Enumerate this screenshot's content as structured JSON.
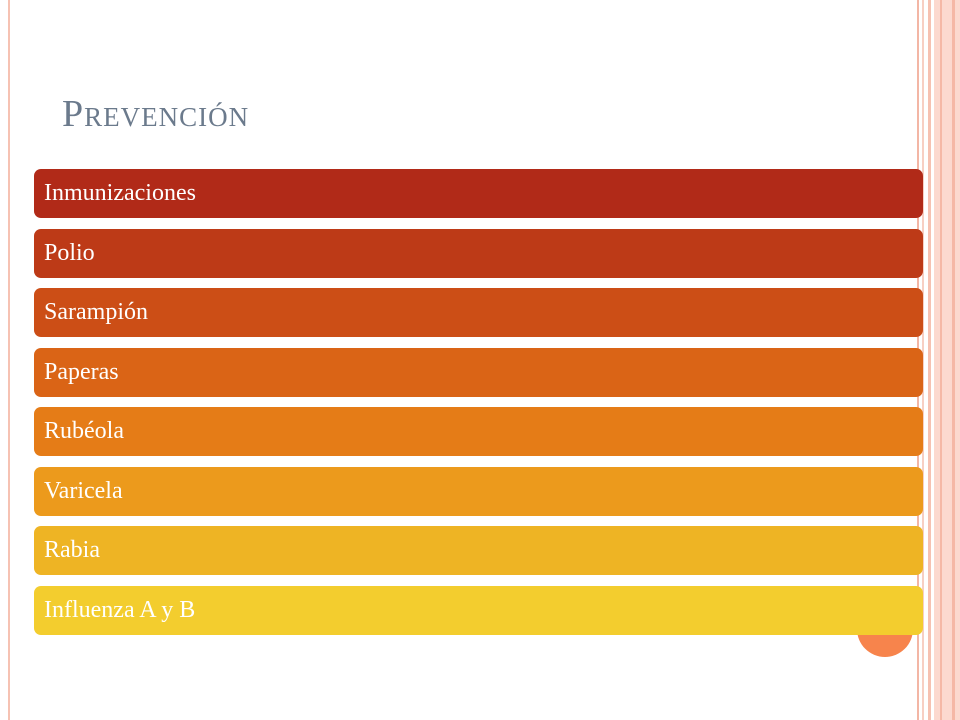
{
  "slide": {
    "title": "Prevención",
    "items": [
      {
        "label": "Inmunizaciones",
        "color": "#b12a18"
      },
      {
        "label": "Polio",
        "color": "#bd3a17"
      },
      {
        "label": "Sarampión",
        "color": "#cc4e16"
      },
      {
        "label": "Paperas",
        "color": "#da6416"
      },
      {
        "label": "Rubéola",
        "color": "#e57c17"
      },
      {
        "label": "Varicela",
        "color": "#ec9a1c"
      },
      {
        "label": "Rabia",
        "color": "#eeb424"
      },
      {
        "label": "Influenza A y B",
        "color": "#f3cd2e"
      }
    ]
  },
  "theme": {
    "title_color": "#6b7a8c",
    "circle_color": "#f7844c"
  }
}
